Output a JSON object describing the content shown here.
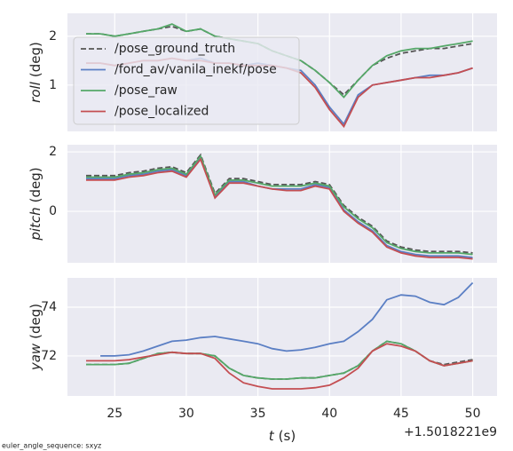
{
  "chart_data": [
    {
      "type": "line",
      "ylabel_var": "roll",
      "ylabel_unit": "(deg)",
      "legend": "upper left",
      "grid": true,
      "xlim": [
        21.7,
        51.7
      ],
      "xticks": [
        25,
        30,
        35,
        40,
        45,
        50
      ],
      "ylim": [
        0.05,
        2.47
      ],
      "yticks": [
        1,
        2
      ],
      "x": [
        23,
        24,
        25,
        26,
        27,
        28,
        29,
        30,
        31,
        32,
        33,
        34,
        35,
        36,
        37,
        38,
        39,
        40,
        41,
        42,
        43,
        44,
        45,
        46,
        47,
        48,
        49,
        50
      ],
      "series": [
        {
          "name": "/pose_ground_truth",
          "color": "#555555",
          "dash": true,
          "values": [
            2.05,
            2.05,
            2.0,
            2.05,
            2.1,
            2.15,
            2.2,
            2.1,
            2.15,
            2.0,
            1.95,
            1.9,
            1.85,
            1.7,
            1.6,
            1.5,
            1.3,
            1.05,
            0.8,
            1.1,
            1.4,
            1.55,
            1.65,
            1.7,
            1.75,
            1.75,
            1.8,
            1.85
          ]
        },
        {
          "name": "/ford_av/vanila_inekf/pose",
          "color": "#5b7fc4",
          "dash": false,
          "values": [
            1.45,
            1.45,
            1.4,
            1.45,
            1.5,
            1.5,
            1.55,
            1.5,
            1.55,
            1.45,
            1.45,
            1.4,
            1.45,
            1.4,
            1.35,
            1.3,
            1.0,
            0.55,
            0.2,
            0.8,
            1.0,
            1.05,
            1.1,
            1.15,
            1.2,
            1.2,
            1.25,
            1.35
          ]
        },
        {
          "name": "/pose_raw",
          "color": "#55a868",
          "dash": false,
          "values": [
            2.05,
            2.05,
            2.0,
            2.05,
            2.1,
            2.15,
            2.25,
            2.1,
            2.15,
            2.0,
            1.95,
            1.9,
            1.85,
            1.7,
            1.6,
            1.5,
            1.3,
            1.05,
            0.75,
            1.1,
            1.4,
            1.6,
            1.7,
            1.75,
            1.75,
            1.8,
            1.85,
            1.9
          ]
        },
        {
          "name": "/pose_localized",
          "color": "#c44e52",
          "dash": false,
          "values": [
            1.45,
            1.45,
            1.4,
            1.45,
            1.5,
            1.5,
            1.55,
            1.5,
            1.5,
            1.45,
            1.45,
            1.4,
            1.4,
            1.4,
            1.35,
            1.25,
            0.95,
            0.5,
            0.15,
            0.75,
            1.0,
            1.05,
            1.1,
            1.15,
            1.15,
            1.2,
            1.25,
            1.35
          ]
        }
      ]
    },
    {
      "type": "line",
      "ylabel_var": "pitch",
      "ylabel_unit": "(deg)",
      "grid": true,
      "xlim": [
        21.7,
        51.7
      ],
      "xticks": [
        25,
        30,
        35,
        40,
        45,
        50
      ],
      "ylim": [
        -1.73,
        2.24
      ],
      "yticks": [
        0,
        2
      ],
      "x": [
        23,
        24,
        25,
        26,
        27,
        28,
        29,
        30,
        31,
        32,
        33,
        34,
        35,
        36,
        37,
        38,
        39,
        40,
        41,
        42,
        43,
        44,
        45,
        46,
        47,
        48,
        49,
        50
      ],
      "series": [
        {
          "name": "/pose_ground_truth",
          "color": "#555555",
          "dash": true,
          "values": [
            1.2,
            1.2,
            1.2,
            1.3,
            1.35,
            1.45,
            1.5,
            1.3,
            1.9,
            0.6,
            1.1,
            1.1,
            1.0,
            0.9,
            0.9,
            0.9,
            1.0,
            0.9,
            0.2,
            -0.2,
            -0.5,
            -1.0,
            -1.2,
            -1.3,
            -1.35,
            -1.35,
            -1.35,
            -1.4
          ]
        },
        {
          "name": "/ford_av/vanila_inekf/pose",
          "color": "#5b7fc4",
          "dash": false,
          "values": [
            1.1,
            1.1,
            1.1,
            1.2,
            1.25,
            1.35,
            1.4,
            1.2,
            1.8,
            0.5,
            1.0,
            1.0,
            0.85,
            0.75,
            0.75,
            0.75,
            0.9,
            0.8,
            0.05,
            -0.35,
            -0.65,
            -1.15,
            -1.35,
            -1.45,
            -1.5,
            -1.5,
            -1.5,
            -1.55
          ]
        },
        {
          "name": "/pose_raw",
          "color": "#55a868",
          "dash": false,
          "values": [
            1.15,
            1.15,
            1.15,
            1.25,
            1.3,
            1.4,
            1.45,
            1.25,
            1.85,
            0.55,
            1.05,
            1.05,
            0.95,
            0.85,
            0.85,
            0.85,
            0.95,
            0.85,
            0.15,
            -0.25,
            -0.55,
            -1.05,
            -1.25,
            -1.35,
            -1.4,
            -1.4,
            -1.4,
            -1.45
          ]
        },
        {
          "name": "/pose_localized",
          "color": "#c44e52",
          "dash": false,
          "values": [
            1.05,
            1.05,
            1.05,
            1.15,
            1.2,
            1.3,
            1.35,
            1.15,
            1.75,
            0.45,
            0.95,
            0.95,
            0.85,
            0.75,
            0.7,
            0.7,
            0.85,
            0.75,
            0.0,
            -0.4,
            -0.7,
            -1.2,
            -1.4,
            -1.5,
            -1.55,
            -1.55,
            -1.55,
            -1.6
          ]
        }
      ]
    },
    {
      "type": "line",
      "ylabel_var": "yaw",
      "ylabel_unit": "(deg)",
      "grid": true,
      "xlabel_var": "t",
      "xlabel_unit": "(s)",
      "x_offset_label": "+1.5018221e9",
      "xlim": [
        21.7,
        51.7
      ],
      "xticks": [
        25,
        30,
        35,
        40,
        45,
        50
      ],
      "ylim": [
        70.36,
        75.2
      ],
      "yticks": [
        72,
        74
      ],
      "x": [
        23,
        24,
        25,
        26,
        27,
        28,
        29,
        30,
        31,
        32,
        33,
        34,
        35,
        36,
        37,
        38,
        39,
        40,
        41,
        42,
        43,
        44,
        45,
        46,
        47,
        48,
        49,
        50
      ],
      "series": [
        {
          "name": "/pose_ground_truth",
          "color": "#555555",
          "dash": true,
          "values": [
            71.65,
            71.65,
            71.65,
            71.7,
            71.9,
            72.1,
            72.15,
            72.1,
            72.1,
            72.0,
            71.5,
            71.2,
            71.1,
            71.05,
            71.05,
            71.1,
            71.1,
            71.2,
            71.3,
            71.6,
            72.2,
            72.6,
            72.5,
            72.2,
            71.8,
            71.65,
            71.75,
            71.85
          ]
        },
        {
          "name": "/ford_av/vanila_inekf/pose",
          "color": "#5b7fc4",
          "dash": false,
          "values": [
            null,
            72.0,
            72.0,
            72.05,
            72.2,
            72.4,
            72.6,
            72.65,
            72.75,
            72.8,
            72.7,
            72.6,
            72.5,
            72.3,
            72.2,
            72.25,
            72.35,
            72.5,
            72.6,
            73.0,
            73.5,
            74.3,
            74.5,
            74.45,
            74.2,
            74.1,
            74.4,
            75.0
          ]
        },
        {
          "name": "/pose_raw",
          "color": "#55a868",
          "dash": false,
          "values": [
            71.65,
            71.65,
            71.65,
            71.7,
            71.9,
            72.1,
            72.15,
            72.1,
            72.1,
            72.0,
            71.5,
            71.2,
            71.1,
            71.05,
            71.05,
            71.1,
            71.1,
            71.2,
            71.3,
            71.6,
            72.2,
            72.6,
            72.5,
            72.2,
            71.8,
            71.6,
            71.7,
            71.8
          ]
        },
        {
          "name": "/pose_localized",
          "color": "#c44e52",
          "dash": false,
          "values": [
            71.8,
            71.8,
            71.8,
            71.85,
            71.95,
            72.05,
            72.15,
            72.1,
            72.1,
            71.9,
            71.3,
            70.9,
            70.75,
            70.65,
            70.65,
            70.65,
            70.7,
            70.8,
            71.1,
            71.5,
            72.2,
            72.5,
            72.4,
            72.2,
            71.8,
            71.6,
            71.7,
            71.8
          ]
        }
      ]
    }
  ],
  "footer": "euler_angle_sequence: sxyz"
}
